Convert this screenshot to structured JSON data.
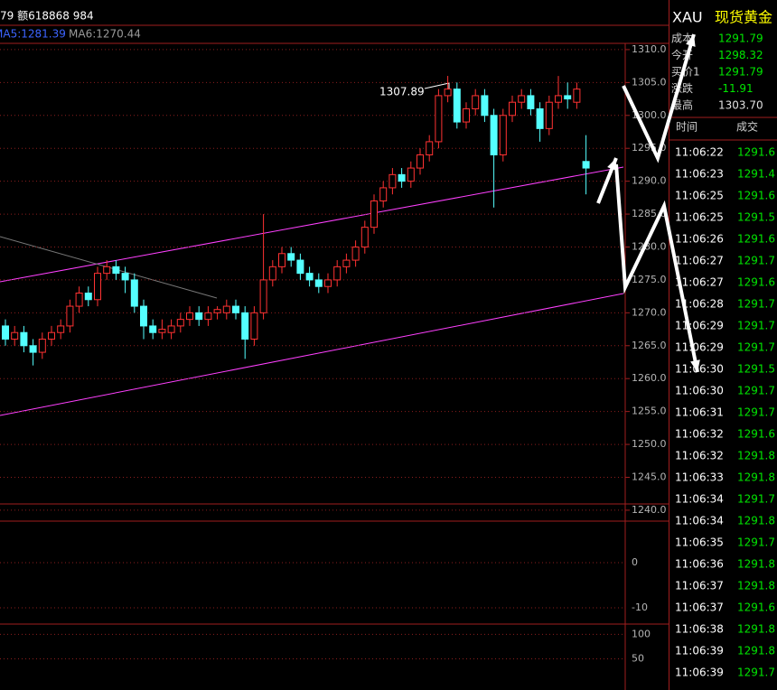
{
  "header": {
    "volume_text": "79 额618868 984",
    "ma5": "MA5:1281.39",
    "ma6": "MA6:1270.44"
  },
  "chart_data": {
    "type": "candlestick",
    "annotation": "1307.89",
    "up_color": "#ff3232",
    "down_color": "#54ffff",
    "ylim": [
      1310.95,
      1240.95
    ],
    "yticks": [
      {
        "value": 1310,
        "label": "1310.0"
      },
      {
        "value": 1305,
        "label": "1305.0"
      },
      {
        "value": 1300,
        "label": "1300.0"
      },
      {
        "value": 1295,
        "label": "1295.0"
      },
      {
        "value": 1290,
        "label": "1290.0"
      },
      {
        "value": 1285,
        "label": "1285.0"
      },
      {
        "value": 1280,
        "label": "1280.0"
      },
      {
        "value": 1275,
        "label": "1275.0"
      },
      {
        "value": 1270,
        "label": "1270.0"
      },
      {
        "value": 1265,
        "label": "1265.0"
      },
      {
        "value": 1260,
        "label": "1260.0"
      },
      {
        "value": 1255,
        "label": "1255.0"
      },
      {
        "value": 1250,
        "label": "1250.0"
      },
      {
        "value": 1245,
        "label": "1245.0"
      },
      {
        "value": 1240,
        "label": "1240.0"
      }
    ],
    "candles": [
      [
        1268,
        1269,
        1265,
        1266
      ],
      [
        1266,
        1268,
        1265,
        1267
      ],
      [
        1267,
        1268,
        1264,
        1265
      ],
      [
        1265,
        1266,
        1262,
        1264
      ],
      [
        1264,
        1267,
        1263,
        1266
      ],
      [
        1266,
        1268,
        1265,
        1267
      ],
      [
        1267,
        1269,
        1266,
        1268
      ],
      [
        1268,
        1272,
        1267,
        1271
      ],
      [
        1271,
        1274,
        1270,
        1273
      ],
      [
        1273,
        1274,
        1271,
        1272
      ],
      [
        1272,
        1277,
        1271,
        1276
      ],
      [
        1276,
        1278,
        1275,
        1277
      ],
      [
        1277,
        1278,
        1275,
        1276
      ],
      [
        1276,
        1277,
        1273,
        1275
      ],
      [
        1275,
        1276,
        1270,
        1271
      ],
      [
        1271,
        1272,
        1266,
        1268
      ],
      [
        1268,
        1269,
        1266,
        1267
      ],
      [
        1267,
        1269,
        1266,
        1267.5
      ],
      [
        1267,
        1269,
        1266,
        1268
      ],
      [
        1268,
        1270,
        1267,
        1269
      ],
      [
        1269,
        1271,
        1268,
        1270
      ],
      [
        1270,
        1271,
        1268,
        1269
      ],
      [
        1269,
        1271,
        1268,
        1270
      ],
      [
        1270,
        1271,
        1269,
        1270.5
      ],
      [
        1270,
        1272,
        1269,
        1271
      ],
      [
        1271,
        1272,
        1269,
        1270
      ],
      [
        1270,
        1271,
        1263,
        1266
      ],
      [
        1266,
        1271,
        1265,
        1270
      ],
      [
        1270,
        1285,
        1269,
        1275
      ],
      [
        1275,
        1278,
        1274,
        1277
      ],
      [
        1277,
        1280,
        1276,
        1279
      ],
      [
        1279,
        1280,
        1277,
        1278
      ],
      [
        1278,
        1279,
        1275,
        1276
      ],
      [
        1276,
        1277,
        1274,
        1275
      ],
      [
        1275,
        1276,
        1273,
        1274
      ],
      [
        1274,
        1276,
        1273,
        1275
      ],
      [
        1275,
        1278,
        1274,
        1277
      ],
      [
        1277,
        1279,
        1276,
        1278
      ],
      [
        1278,
        1281,
        1277,
        1280
      ],
      [
        1280,
        1284,
        1279,
        1283
      ],
      [
        1283,
        1288,
        1282,
        1287
      ],
      [
        1287,
        1290,
        1286,
        1289
      ],
      [
        1289,
        1292,
        1288,
        1291
      ],
      [
        1291,
        1292,
        1289,
        1290
      ],
      [
        1290,
        1293,
        1289,
        1292
      ],
      [
        1292,
        1295,
        1291,
        1294
      ],
      [
        1294,
        1297,
        1293,
        1296
      ],
      [
        1296,
        1304,
        1295,
        1303
      ],
      [
        1303,
        1306,
        1302,
        1304
      ],
      [
        1304,
        1305,
        1298,
        1299
      ],
      [
        1299,
        1302,
        1298,
        1301
      ],
      [
        1301,
        1304,
        1300,
        1303
      ],
      [
        1303,
        1304,
        1299,
        1300
      ],
      [
        1300,
        1301,
        1286,
        1294
      ],
      [
        1294,
        1301,
        1293,
        1300
      ],
      [
        1300,
        1303,
        1299,
        1302
      ],
      [
        1302,
        1304,
        1301,
        1303
      ],
      [
        1303,
        1304,
        1300,
        1301
      ],
      [
        1301,
        1302,
        1296,
        1298
      ],
      [
        1298,
        1303,
        1297,
        1302
      ],
      [
        1302,
        1306,
        1301,
        1303
      ],
      [
        1303,
        1305,
        1301,
        1302.5
      ],
      [
        1302,
        1305,
        1301,
        1304
      ],
      [
        1293,
        1297,
        1288,
        1292
      ]
    ]
  },
  "macd": {
    "ylim": [
      9.2,
      -13.6
    ],
    "yticks": [
      0,
      -10
    ]
  },
  "kdj": {
    "ylim": [
      121,
      -13.5
    ],
    "yticks": [
      100,
      50
    ]
  },
  "quote": {
    "symbol": "XAU",
    "name": "现货黄金",
    "rows": [
      [
        "成本",
        "1291.79"
      ],
      [
        "今开",
        "1298.32"
      ],
      [
        "买价1",
        "1291.79"
      ],
      [
        "涨跌",
        "-11.91"
      ],
      [
        "最高",
        "1303.70"
      ]
    ]
  },
  "trades": {
    "headers": [
      "时间",
      "成交"
    ],
    "rows": [
      [
        "11:06:22",
        "1291.6"
      ],
      [
        "11:06:23",
        "1291.4"
      ],
      [
        "11:06:25",
        "1291.6"
      ],
      [
        "11:06:25",
        "1291.5"
      ],
      [
        "11:06:26",
        "1291.6"
      ],
      [
        "11:06:27",
        "1291.7"
      ],
      [
        "11:06:27",
        "1291.6"
      ],
      [
        "11:06:28",
        "1291.7"
      ],
      [
        "11:06:29",
        "1291.7"
      ],
      [
        "11:06:29",
        "1291.7"
      ],
      [
        "11:06:30",
        "1291.5"
      ],
      [
        "11:06:30",
        "1291.7"
      ],
      [
        "11:06:31",
        "1291.7"
      ],
      [
        "11:06:32",
        "1291.6"
      ],
      [
        "11:06:32",
        "1291.8"
      ],
      [
        "11:06:33",
        "1291.8"
      ],
      [
        "11:06:34",
        "1291.7"
      ],
      [
        "11:06:34",
        "1291.8"
      ],
      [
        "11:06:35",
        "1291.7"
      ],
      [
        "11:06:36",
        "1291.8"
      ],
      [
        "11:06:37",
        "1291.8"
      ],
      [
        "11:06:37",
        "1291.6"
      ],
      [
        "11:06:38",
        "1291.8"
      ],
      [
        "11:06:39",
        "1291.8"
      ],
      [
        "11:06:39",
        "1291.7"
      ]
    ]
  }
}
